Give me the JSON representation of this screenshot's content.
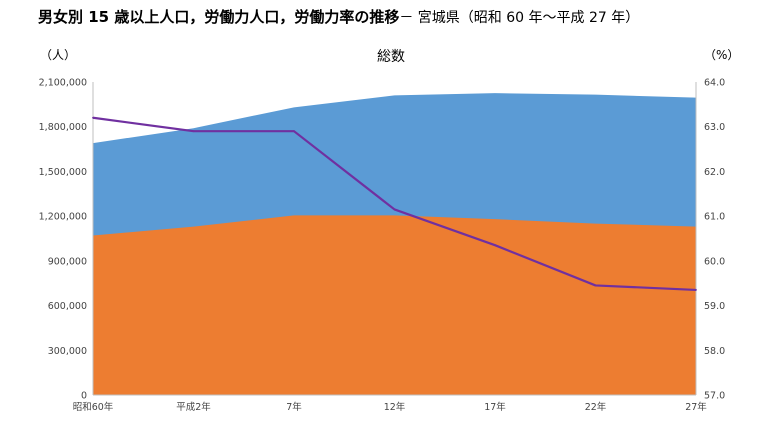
{
  "chart_data": {
    "type": "area",
    "title": "男女別 15 歳以上人口，労働力人口，労働力率の推移",
    "title_suffix": "－ 宮城県（昭和 60 年～平成 27 年）",
    "subtitle": "総数",
    "ylabel_left": "（人）",
    "ylabel_right": "（%）",
    "categories": [
      "昭和60年",
      "平成2年",
      "7年",
      "12年",
      "17年",
      "22年",
      "27年"
    ],
    "ylim_left": [
      0,
      2100000
    ],
    "yticks_left": [
      "0",
      "300,000",
      "600,000",
      "900,000",
      "1,200,000",
      "1,500,000",
      "1,800,000",
      "2,100,000"
    ],
    "ylim_right": [
      57.0,
      64.0
    ],
    "yticks_right": [
      "57.0",
      "58.0",
      "59.0",
      "60.0",
      "61.0",
      "62.0",
      "63.0",
      "64.0"
    ],
    "series": [
      {
        "axis": "left",
        "kind": "area",
        "color": "#5B9BD5",
        "values": [
          1690000,
          1790000,
          1930000,
          2010000,
          2025000,
          2015000,
          1995000
        ]
      },
      {
        "axis": "left",
        "kind": "area",
        "color": "#ED7D31",
        "values": [
          1070000,
          1130000,
          1205000,
          1205000,
          1180000,
          1150000,
          1130000
        ]
      },
      {
        "axis": "right",
        "kind": "line",
        "color": "#7030A0",
        "values": [
          63.2,
          62.9,
          62.9,
          61.15,
          60.35,
          59.45,
          59.35
        ]
      }
    ]
  }
}
